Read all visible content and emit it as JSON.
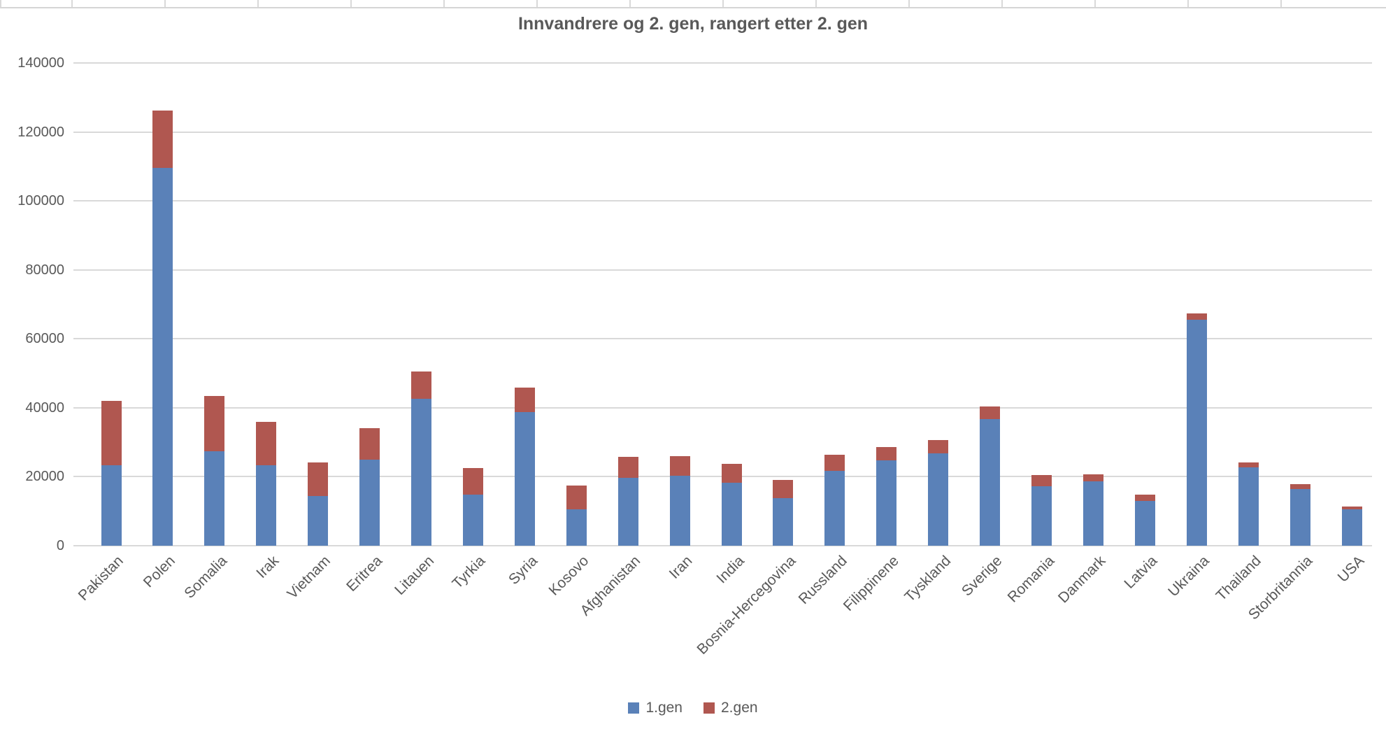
{
  "spreadsheet_strip": {
    "description": "thin row of empty spreadsheet cells visible above the chart",
    "cell_border_color": "#d9d9d9"
  },
  "chart_data": {
    "type": "bar",
    "stacked": true,
    "title": "Innvandrere og 2. gen, rangert etter 2. gen",
    "categories": [
      "Pakistan",
      "Polen",
      "Somalia",
      "Irak",
      "Vietnam",
      "Eritrea",
      "Litauen",
      "Tyrkia",
      "Syria",
      "Kosovo",
      "Afghanistan",
      "Iran",
      "India",
      "Bosnia-Hercegovina",
      "Russland",
      "Filippinene",
      "Tyskland",
      "Sverige",
      "Romania",
      "Danmark",
      "Latvia",
      "Ukraina",
      "Thailand",
      "Storbritannia",
      "USA"
    ],
    "series": [
      {
        "name": "1.gen",
        "color": "#5a81b8",
        "values": [
          23400,
          109500,
          27400,
          23300,
          14400,
          25000,
          42700,
          14900,
          38700,
          10600,
          19600,
          20300,
          18200,
          13700,
          21700,
          24700,
          26800,
          36700,
          17300,
          18700,
          12900,
          65600,
          22700,
          16400,
          10500
        ]
      },
      {
        "name": "2.gen",
        "color": "#b05750",
        "values": [
          18600,
          16800,
          16000,
          12700,
          9700,
          9100,
          7800,
          7700,
          7100,
          6900,
          6100,
          5600,
          5500,
          5400,
          4700,
          4000,
          3900,
          3600,
          3200,
          2000,
          1900,
          1700,
          1500,
          1400,
          800
        ]
      }
    ],
    "xlabel": "",
    "ylabel": "",
    "ylim": [
      0,
      140000
    ],
    "yticks": [
      0,
      20000,
      40000,
      60000,
      80000,
      100000,
      120000,
      140000
    ],
    "ytick_labels": [
      "0",
      "20000",
      "40000",
      "60000",
      "80000",
      "100000",
      "120000",
      "140000"
    ],
    "grid": true,
    "legend_position": "bottom",
    "colors": {
      "gridline": "#d9d9d9",
      "axis_text": "#595959",
      "title_text": "#595959",
      "plot_background": "#ffffff"
    }
  }
}
